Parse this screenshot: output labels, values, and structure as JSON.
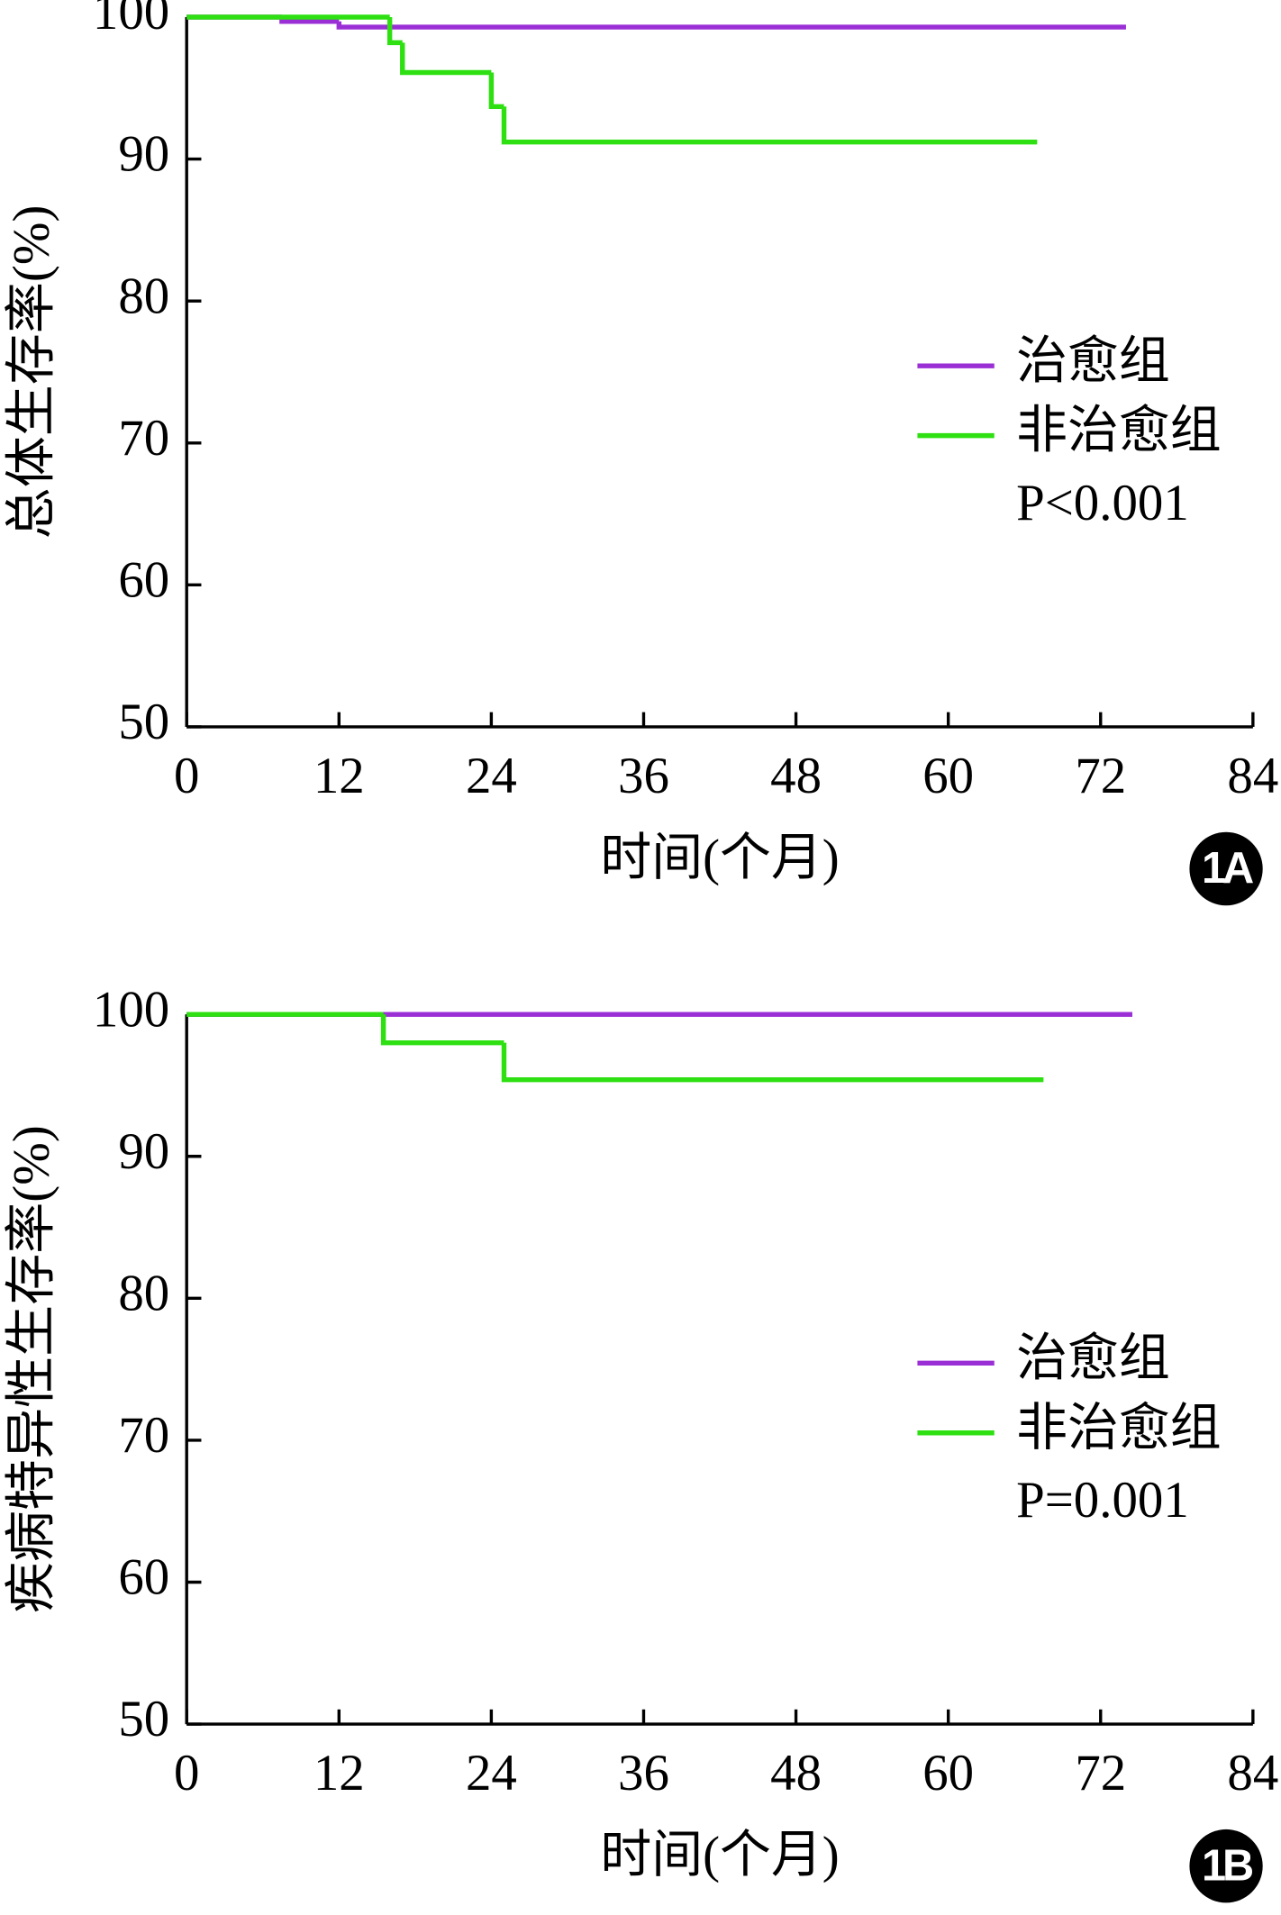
{
  "chart_data": [
    {
      "type": "line",
      "drawstyle": "steps-post",
      "ylabel": "总体生存率(%)",
      "xlabel": "时间(个月)",
      "panel_label": "1A",
      "annotation": "P<0.001",
      "xlim": [
        0,
        84
      ],
      "xticks": [
        0,
        12,
        24,
        36,
        48,
        60,
        72,
        84
      ],
      "ylim": [
        50,
        100
      ],
      "yticks": [
        50,
        60,
        70,
        80,
        90,
        100
      ],
      "series": [
        {
          "name": "治愈组",
          "color": "#9b2fd6",
          "x": [
            0,
            7.5,
            12,
            74
          ],
          "values": [
            100,
            99.7,
            99.3,
            99.3
          ]
        },
        {
          "name": "非治愈组",
          "color": "#2ee012",
          "x": [
            0,
            16,
            17,
            24,
            25,
            67
          ],
          "values": [
            100,
            98.2,
            96.1,
            93.7,
            91.2,
            91.2
          ]
        }
      ]
    },
    {
      "type": "line",
      "drawstyle": "steps-post",
      "ylabel": "疾病特异性生存率(%)",
      "xlabel": "时间(个月)",
      "panel_label": "1B",
      "annotation": "P=0.001",
      "xlim": [
        0,
        84
      ],
      "xticks": [
        0,
        12,
        24,
        36,
        48,
        60,
        72,
        84
      ],
      "ylim": [
        50,
        100
      ],
      "yticks": [
        50,
        60,
        70,
        80,
        90,
        100
      ],
      "series": [
        {
          "name": "治愈组",
          "color": "#9b2fd6",
          "x": [
            0,
            74.5
          ],
          "values": [
            100,
            100
          ]
        },
        {
          "name": "非治愈组",
          "color": "#2ee012",
          "x": [
            0,
            15.5,
            25,
            67.5
          ],
          "values": [
            100,
            98.0,
            95.4,
            95.4
          ]
        }
      ]
    }
  ]
}
